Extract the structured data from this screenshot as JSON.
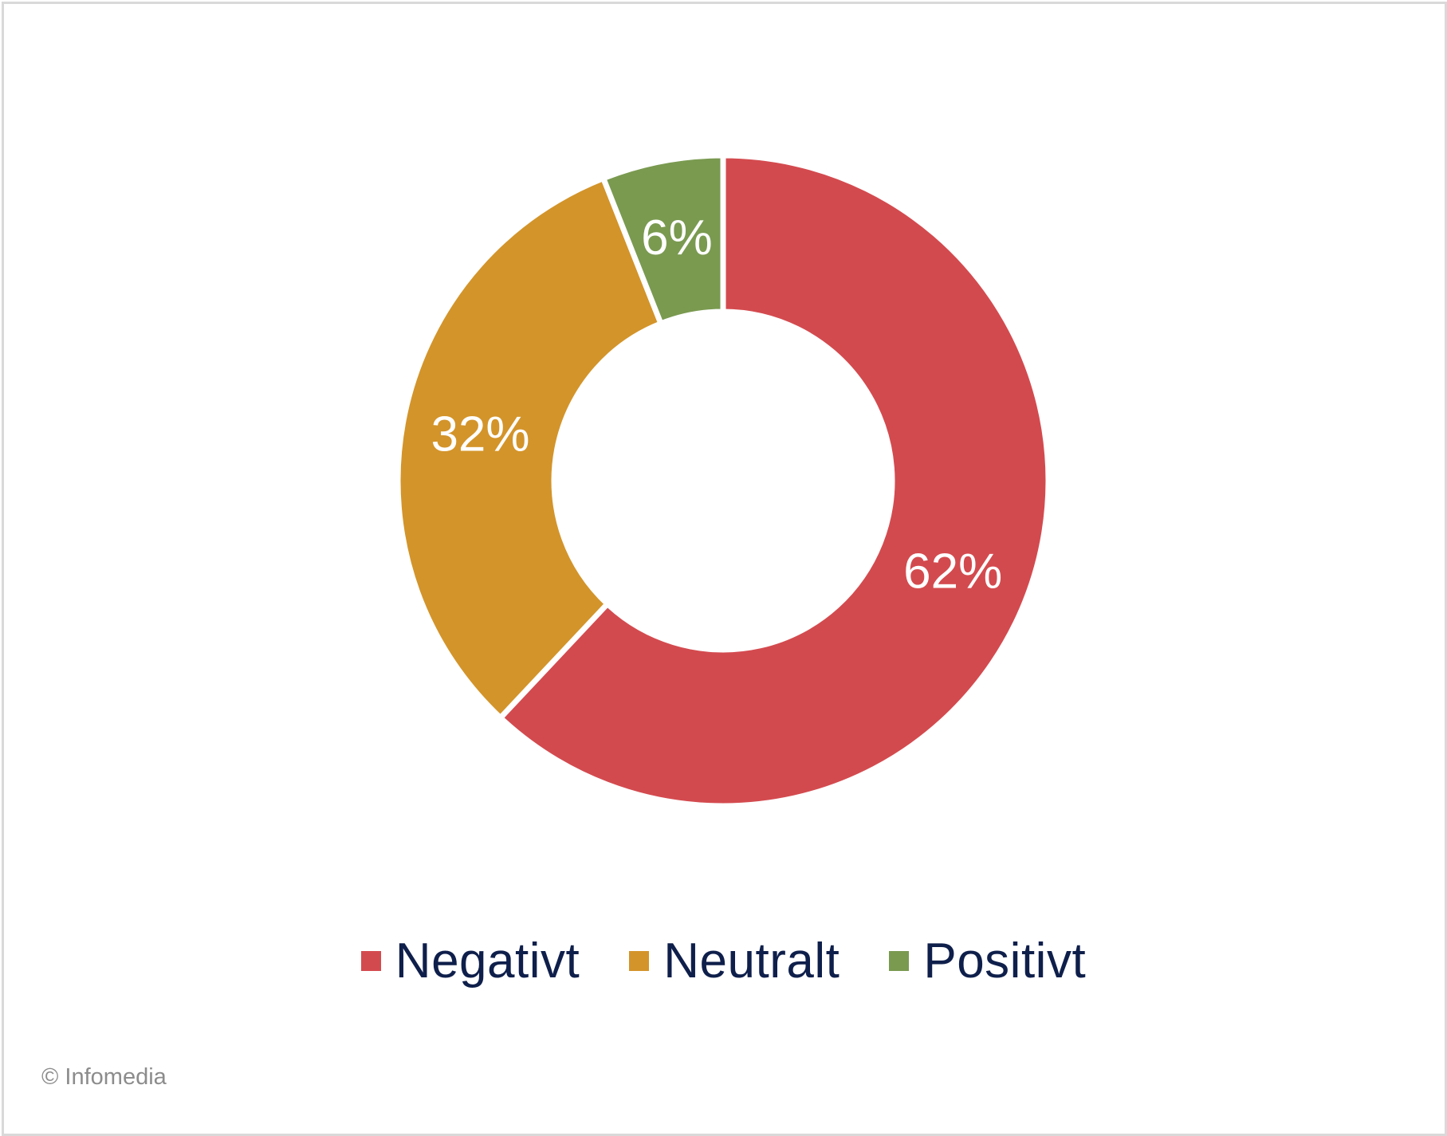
{
  "chart_data": {
    "type": "pie",
    "variant": "donut",
    "categories": [
      "Negativt",
      "Neutralt",
      "Positivt"
    ],
    "values": [
      62,
      32,
      6
    ],
    "value_labels": [
      "62%",
      "32%",
      "6%"
    ],
    "colors": [
      "#d34a4e",
      "#d3942a",
      "#7a9a50"
    ],
    "legend_position": "bottom"
  },
  "footer": {
    "copyright": "© Infomedia"
  }
}
